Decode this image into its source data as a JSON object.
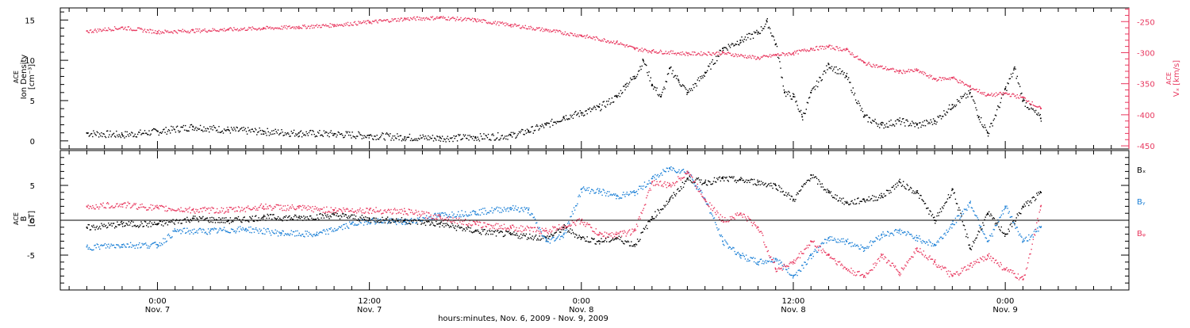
{
  "chart_data": [
    {
      "type": "scatter",
      "panel": "top",
      "ylabel_lines": [
        "ACE",
        "Ion Density",
        "[cm⁻³]"
      ],
      "ylim": [
        -1,
        16.5
      ],
      "yticks": [
        0,
        5,
        10,
        15
      ],
      "y2label_lines": [
        "ACE",
        "Vₓ [km/s]"
      ],
      "y2lim": [
        -455,
        -228
      ],
      "y2ticks": [
        -250,
        -300,
        -350,
        -400,
        -450
      ],
      "colors": {
        "density": "#000000",
        "vx": "#e8385f"
      },
      "series": [
        {
          "key": "density",
          "axis": "left",
          "points": [
            [
              -4,
              1.0
            ],
            [
              -2,
              0.8
            ],
            [
              0,
              1.2
            ],
            [
              2,
              1.8
            ],
            [
              4,
              1.4
            ],
            [
              6,
              1.2
            ],
            [
              8,
              1.0
            ],
            [
              10,
              0.9
            ],
            [
              12,
              0.7
            ],
            [
              14,
              0.5
            ],
            [
              16,
              0.4
            ],
            [
              18,
              0.5
            ],
            [
              20,
              0.7
            ],
            [
              21,
              1.3
            ],
            [
              22,
              2.0
            ],
            [
              23,
              3.0
            ],
            [
              24,
              3.5
            ],
            [
              25,
              4.2
            ],
            [
              26,
              5.5
            ],
            [
              26.5,
              7.0
            ],
            [
              27,
              8.0
            ],
            [
              27.5,
              10.0
            ],
            [
              28,
              7.0
            ],
            [
              28.5,
              5.5
            ],
            [
              29,
              9.0
            ],
            [
              29.5,
              7.5
            ],
            [
              30,
              6.0
            ],
            [
              31,
              8.5
            ],
            [
              32,
              11.5
            ],
            [
              33,
              12.5
            ],
            [
              34,
              13.5
            ],
            [
              34.5,
              14.8
            ],
            [
              35,
              12.0
            ],
            [
              35.5,
              6.0
            ],
            [
              36,
              5.5
            ],
            [
              36.5,
              3.0
            ],
            [
              37,
              6.0
            ],
            [
              38,
              9.5
            ],
            [
              39,
              8.0
            ],
            [
              40,
              3.0
            ],
            [
              41,
              2.0
            ],
            [
              42,
              2.5
            ],
            [
              43,
              2.0
            ],
            [
              44,
              2.5
            ],
            [
              45,
              4.5
            ],
            [
              46,
              6.0
            ],
            [
              46.5,
              3.0
            ],
            [
              47,
              1.0
            ],
            [
              48,
              6.5
            ],
            [
              48.5,
              9.0
            ],
            [
              49,
              5.0
            ],
            [
              50,
              2.8
            ]
          ]
        },
        {
          "key": "vx",
          "axis": "right",
          "points": [
            [
              -4,
              -265
            ],
            [
              -2,
              -259
            ],
            [
              0,
              -266
            ],
            [
              2,
              -264
            ],
            [
              4,
              -262
            ],
            [
              6,
              -260
            ],
            [
              8,
              -258
            ],
            [
              10,
              -255
            ],
            [
              12,
              -250
            ],
            [
              14,
              -245
            ],
            [
              16,
              -243
            ],
            [
              18,
              -247
            ],
            [
              20,
              -255
            ],
            [
              22,
              -263
            ],
            [
              24,
              -272
            ],
            [
              26,
              -283
            ],
            [
              27,
              -293
            ],
            [
              28,
              -297
            ],
            [
              30,
              -301
            ],
            [
              32,
              -300
            ],
            [
              34,
              -308
            ],
            [
              35,
              -303
            ],
            [
              36,
              -300
            ],
            [
              37,
              -293
            ],
            [
              38,
              -290
            ],
            [
              39,
              -295
            ],
            [
              40,
              -316
            ],
            [
              42,
              -330
            ],
            [
              43,
              -328
            ],
            [
              44,
              -342
            ],
            [
              45,
              -340
            ],
            [
              46,
              -355
            ],
            [
              47,
              -368
            ],
            [
              48,
              -365
            ],
            [
              49,
              -372
            ],
            [
              50,
              -390
            ]
          ]
        }
      ]
    },
    {
      "type": "scatter",
      "panel": "bottom",
      "ylabel_lines": [
        "ACE",
        "B",
        "[nT]"
      ],
      "ylim": [
        -10,
        10
      ],
      "yticks": [
        -5,
        0,
        5
      ],
      "colors": {
        "bx": "#000000",
        "by": "#1a7fd6",
        "bz": "#e8385f"
      },
      "series": [
        {
          "key": "bx",
          "label": "Bₓ",
          "points": [
            [
              -4,
              -1.0
            ],
            [
              -2,
              -0.5
            ],
            [
              0,
              -0.5
            ],
            [
              2,
              0.3
            ],
            [
              4,
              0.0
            ],
            [
              6,
              0.5
            ],
            [
              8,
              0.4
            ],
            [
              10,
              0.8
            ],
            [
              12,
              0.2
            ],
            [
              14,
              0.0
            ],
            [
              16,
              -0.5
            ],
            [
              18,
              -1.5
            ],
            [
              20,
              -2.0
            ],
            [
              22,
              -2.5
            ],
            [
              23,
              -1.0
            ],
            [
              24,
              -2.5
            ],
            [
              25,
              -3.0
            ],
            [
              26,
              -2.5
            ],
            [
              27,
              -3.5
            ],
            [
              28,
              0.5
            ],
            [
              29,
              3.0
            ],
            [
              30,
              6.0
            ],
            [
              31,
              5.5
            ],
            [
              32,
              6.0
            ],
            [
              33,
              5.8
            ],
            [
              34,
              5.5
            ],
            [
              35,
              5.0
            ],
            [
              36,
              3.0
            ],
            [
              37,
              6.5
            ],
            [
              38,
              4.0
            ],
            [
              39,
              2.5
            ],
            [
              40,
              3.0
            ],
            [
              41,
              3.5
            ],
            [
              42,
              5.5
            ],
            [
              43,
              4.0
            ],
            [
              44,
              0.0
            ],
            [
              45,
              4.5
            ],
            [
              46,
              -4.0
            ],
            [
              47,
              1.0
            ],
            [
              48,
              -2.0
            ],
            [
              49,
              2.0
            ],
            [
              50,
              4.0
            ]
          ]
        },
        {
          "key": "by",
          "label": "Bᵧ",
          "points": [
            [
              -4,
              -3.8
            ],
            [
              -2,
              -3.5
            ],
            [
              0,
              -3.5
            ],
            [
              1,
              -1.5
            ],
            [
              3,
              -1.5
            ],
            [
              5,
              -1.2
            ],
            [
              7,
              -1.8
            ],
            [
              9,
              -2.0
            ],
            [
              11,
              -0.5
            ],
            [
              12,
              0.0
            ],
            [
              14,
              -0.2
            ],
            [
              16,
              0.8
            ],
            [
              18,
              1.2
            ],
            [
              20,
              1.8
            ],
            [
              21,
              1.5
            ],
            [
              22,
              -3.0
            ],
            [
              23,
              -2.0
            ],
            [
              24,
              4.5
            ],
            [
              25,
              4.2
            ],
            [
              26,
              3.5
            ],
            [
              27,
              4.0
            ],
            [
              28,
              6.0
            ],
            [
              29,
              7.5
            ],
            [
              30,
              7.0
            ],
            [
              31,
              3.0
            ],
            [
              32,
              -3.0
            ],
            [
              33,
              -5.0
            ],
            [
              34,
              -6.0
            ],
            [
              35,
              -5.5
            ],
            [
              36,
              -8.0
            ],
            [
              37,
              -5.0
            ],
            [
              38,
              -2.5
            ],
            [
              39,
              -3.0
            ],
            [
              40,
              -4.0
            ],
            [
              41,
              -2.0
            ],
            [
              42,
              -1.5
            ],
            [
              43,
              -2.5
            ],
            [
              44,
              -3.5
            ],
            [
              45,
              -0.5
            ],
            [
              46,
              2.5
            ],
            [
              47,
              -3.0
            ],
            [
              48,
              2.0
            ],
            [
              49,
              -3.0
            ],
            [
              50,
              -1.0
            ]
          ]
        },
        {
          "key": "bz",
          "label": "Bᵩ",
          "points": [
            [
              -4,
              2.0
            ],
            [
              -2,
              2.3
            ],
            [
              0,
              1.8
            ],
            [
              2,
              1.5
            ],
            [
              4,
              1.5
            ],
            [
              6,
              2.0
            ],
            [
              8,
              1.8
            ],
            [
              10,
              1.5
            ],
            [
              12,
              1.5
            ],
            [
              14,
              1.3
            ],
            [
              16,
              0.5
            ],
            [
              18,
              -0.5
            ],
            [
              20,
              -1.0
            ],
            [
              22,
              -1.5
            ],
            [
              24,
              0.0
            ],
            [
              25,
              -2.0
            ],
            [
              26,
              -2.0
            ],
            [
              27,
              -1.5
            ],
            [
              28,
              5.5
            ],
            [
              29,
              5.0
            ],
            [
              30,
              7.0
            ],
            [
              31,
              3.0
            ],
            [
              32,
              0.0
            ],
            [
              33,
              1.0
            ],
            [
              34,
              -1.0
            ],
            [
              35,
              -7.0
            ],
            [
              36,
              -6.0
            ],
            [
              37,
              -3.0
            ],
            [
              38,
              -5.0
            ],
            [
              39,
              -7.0
            ],
            [
              40,
              -8.0
            ],
            [
              41,
              -5.0
            ],
            [
              42,
              -7.5
            ],
            [
              43,
              -4.0
            ],
            [
              44,
              -6.0
            ],
            [
              45,
              -8.0
            ],
            [
              46,
              -6.5
            ],
            [
              47,
              -5.0
            ],
            [
              48,
              -7.0
            ],
            [
              49,
              -8.5
            ],
            [
              50,
              2.0
            ]
          ]
        }
      ]
    }
  ],
  "legend": {
    "bx": "Bₓ",
    "by": "Bᵧ",
    "bz": "Bᵩ"
  },
  "x_axis": {
    "xlim": [
      -5.5,
      55
    ],
    "ticks": [
      {
        "hours": 0,
        "time": "0:00",
        "date": "Nov. 7"
      },
      {
        "hours": 12,
        "time": "12:00",
        "date": "Nov. 7"
      },
      {
        "hours": 24,
        "time": "0:00",
        "date": "Nov. 8"
      },
      {
        "hours": 36,
        "time": "12:00",
        "date": "Nov. 8"
      },
      {
        "hours": 48,
        "time": "0:00",
        "date": "Nov. 9"
      }
    ],
    "minor_step_hours": 1,
    "label": "hours:minutes, Nov.  6, 2009 - Nov.  9, 2009"
  }
}
